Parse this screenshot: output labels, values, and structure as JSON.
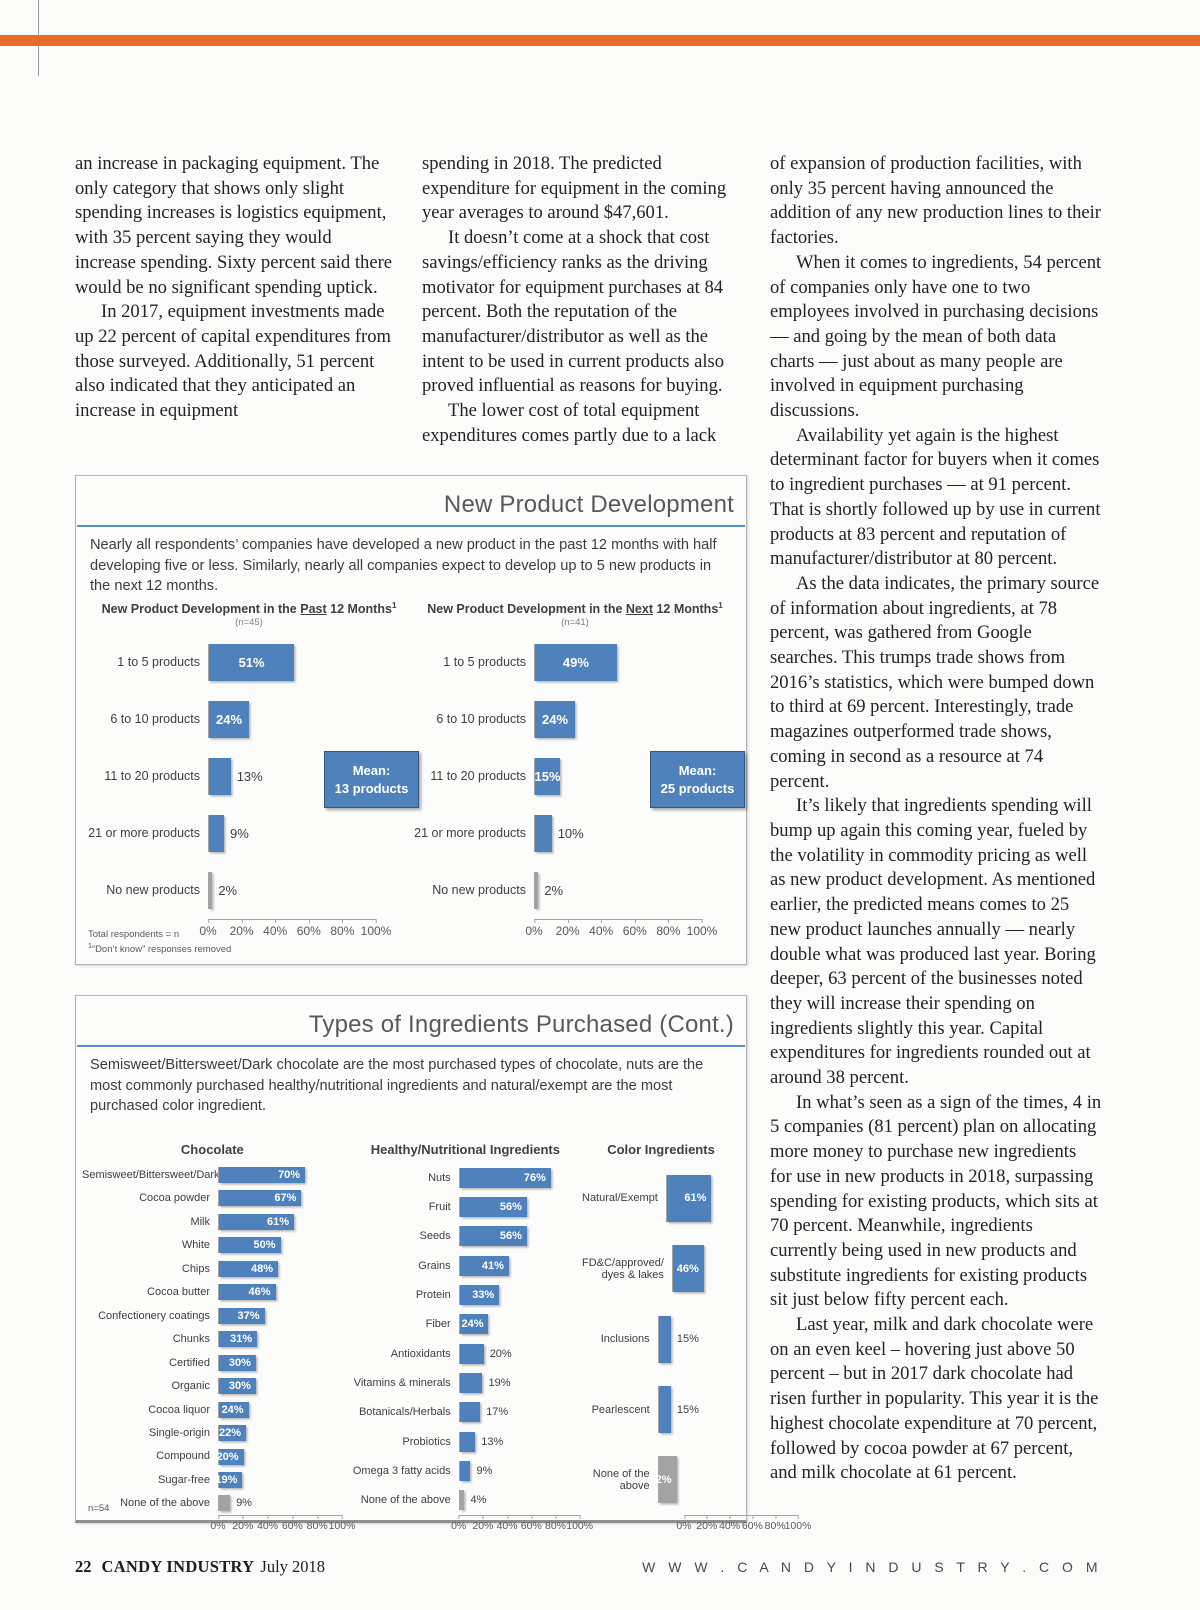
{
  "page": {
    "top_bar_color": "#e76b28",
    "accent_blue": "#4f81bd",
    "bar_gray": "#a3a3a3",
    "rule_blue": "#5b8fc9"
  },
  "article": {
    "col1": [
      "an increase in packaging equipment. The only category that shows only slight spending increases is logistics equipment, with 35 percent saying they would increase spending. Sixty percent said there would be no significant spending uptick.",
      "In 2017, equipment investments made up 22 percent of capital expenditures from those surveyed. Additionally, 51 percent also indicated that they anticipated an increase in equipment"
    ],
    "col2": [
      "spending in 2018. The predicted expenditure for equipment in the coming year averages to around $47,601.",
      "It doesn’t come at a shock that cost savings/efficiency ranks as the driving motivator for equipment purchases at 84 percent. Both the reputation of the manufacturer/distributor as well as the intent to be used in current products also proved influential as reasons for buying.",
      "The lower cost of total equipment expenditures comes partly due to a lack"
    ],
    "col3": [
      "of expansion of production facilities, with only 35 percent having announced the addition of any new production lines to their factories.",
      "When it comes to ingredients, 54 percent of companies only have one to two employees involved in purchasing decisions — and going by the mean of both data charts — just about as many people are involved in equipment purchasing discussions.",
      "Availability yet again is the highest determinant factor for buyers when it comes to ingredient purchases — at 91 percent. That is shortly followed up by use in current products at 83 percent and reputation of manufacturer/distributor at 80 percent.",
      "As the data indicates, the primary source of information about ingredients, at 78 percent, was gathered from Google searches. This trumps trade shows from 2016’s statistics, which were bumped down to third at 69 percent. Interestingly, trade magazines outperformed trade shows, coming in second as a resource at 74 percent.",
      "It’s likely that ingredients spending will bump up again this coming year, fueled by the volatility in commodity pricing as well as new product development. As mentioned earlier, the predicted means comes to 25 new product launches annually — nearly double what was produced last year. Boring deeper, 63 percent of the businesses noted they will increase their spending on ingredients slightly this year. Capital expenditures for ingredients rounded out at around 38 percent.",
      "In what’s seen as a sign of the times, 4 in 5 companies (81 percent) plan on allocating more money to purchase new ingredients for use in new products in 2018, surpassing spending for existing products, which sits at 70 percent. Meanwhile, ingredients currently being used in new products and substitute ingredients for existing products sit just below fifty percent each.",
      "Last year, milk and dark chocolate were on an even keel – hovering just above 50 percent – but in 2017 dark chocolate had risen further in popularity. This year it is the highest chocolate expenditure at 70 percent, followed by cocoa powder at 67 percent, and milk chocolate at 61 percent."
    ]
  },
  "npd_box": {
    "title": "New Product Development",
    "subtitle": "Nearly all respondents’ companies have developed a new product in the past 12 months with half developing five or less. Similarly, nearly all companies expect to develop up to 5 new products in the next 12 months.",
    "footnote_line1": "Total respondents = n",
    "footnote_sup": "1",
    "footnote_line2": "“Don’t know” responses removed"
  },
  "ingredients_box": {
    "title": "Types of Ingredients Purchased (Cont.)",
    "subtitle": "Semisweet/Bittersweet/Dark chocolate are the most purchased types of chocolate, nuts are the most commonly purchased healthy/nutritional ingredients and natural/exempt are the most purchased color ingredient.",
    "footnote": "n=54"
  },
  "chart_data": [
    {
      "id": "npd_past_12_months",
      "type": "bar",
      "orientation": "horizontal",
      "title_prefix": "New Product Development in the ",
      "title_underline": "Past",
      "title_suffix": " 12 Months",
      "title_sup": "1",
      "n_label": "(n=45)",
      "categories": [
        "1 to 5 products",
        "6 to 10 products",
        "11 to 20 products",
        "21 or more products",
        "No new products"
      ],
      "values": [
        51,
        24,
        13,
        9,
        2
      ],
      "value_labels": [
        "51%",
        "24%",
        "13%",
        "9%",
        "2%"
      ],
      "label_inside": [
        true,
        true,
        false,
        false,
        false
      ],
      "bar_colors": [
        "#4f81bd",
        "#4f81bd",
        "#4f81bd",
        "#4f81bd",
        "#a3a3a3"
      ],
      "mean_line1": "Mean:",
      "mean_line2": "13 products",
      "xlim": [
        0,
        100
      ],
      "x_ticks": [
        "0%",
        "20%",
        "40%",
        "60%",
        "80%",
        "100%"
      ],
      "grid": false,
      "legend": "none"
    },
    {
      "id": "npd_next_12_months",
      "type": "bar",
      "orientation": "horizontal",
      "title_prefix": "New Product Development in the ",
      "title_underline": "Next",
      "title_suffix": " 12 Months",
      "title_sup": "1",
      "n_label": "(n=41)",
      "categories": [
        "1 to 5 products",
        "6 to 10 products",
        "11 to 20 products",
        "21 or more products",
        "No new products"
      ],
      "values": [
        49,
        24,
        15,
        10,
        2
      ],
      "value_labels": [
        "49%",
        "24%",
        "15%",
        "10%",
        "2%"
      ],
      "label_inside": [
        true,
        true,
        true,
        false,
        false
      ],
      "bar_colors": [
        "#4f81bd",
        "#4f81bd",
        "#4f81bd",
        "#4f81bd",
        "#a3a3a3"
      ],
      "mean_line1": "Mean:",
      "mean_line2": "25 products",
      "xlim": [
        0,
        100
      ],
      "x_ticks": [
        "0%",
        "20%",
        "40%",
        "60%",
        "80%",
        "100%"
      ],
      "grid": false,
      "legend": "none"
    },
    {
      "id": "chocolate",
      "type": "bar",
      "orientation": "horizontal",
      "title": "Chocolate",
      "categories": [
        "Semisweet/Bittersweet/Dark",
        "Cocoa powder",
        "Milk",
        "White",
        "Chips",
        "Cocoa butter",
        "Confectionery coatings",
        "Chunks",
        "Certified",
        "Organic",
        "Cocoa liquor",
        "Single-origin",
        "Compound",
        "Sugar-free",
        "None of the above"
      ],
      "values": [
        70,
        67,
        61,
        50,
        48,
        46,
        37,
        31,
        30,
        30,
        24,
        22,
        20,
        19,
        9
      ],
      "value_labels": [
        "70%",
        "67%",
        "61%",
        "50%",
        "48%",
        "46%",
        "37%",
        "31%",
        "30%",
        "30%",
        "24%",
        "22%",
        "20%",
        "19%",
        "9%"
      ],
      "label_inside": [
        true,
        true,
        true,
        true,
        true,
        true,
        true,
        true,
        true,
        true,
        true,
        true,
        true,
        true,
        false
      ],
      "bar_colors": [
        "#4f81bd",
        "#4f81bd",
        "#4f81bd",
        "#4f81bd",
        "#4f81bd",
        "#4f81bd",
        "#4f81bd",
        "#4f81bd",
        "#4f81bd",
        "#4f81bd",
        "#4f81bd",
        "#4f81bd",
        "#4f81bd",
        "#4f81bd",
        "#a3a3a3"
      ],
      "xlim": [
        0,
        100
      ],
      "x_ticks": [
        "0%",
        "20%",
        "40%",
        "60%",
        "80%",
        "100%"
      ],
      "grid": false,
      "legend": "none"
    },
    {
      "id": "healthy_nutritional_ingredients",
      "type": "bar",
      "orientation": "horizontal",
      "title": "Healthy/Nutritional Ingredients",
      "categories": [
        "Nuts",
        "Fruit",
        "Seeds",
        "Grains",
        "Protein",
        "Fiber",
        "Antioxidants",
        "Vitamins & minerals",
        "Botanicals/Herbals",
        "Probiotics",
        "Omega 3 fatty acids",
        "None of the above"
      ],
      "values": [
        76,
        56,
        56,
        41,
        33,
        24,
        20,
        19,
        17,
        13,
        9,
        4
      ],
      "value_labels": [
        "76%",
        "56%",
        "56%",
        "41%",
        "33%",
        "24%",
        "20%",
        "19%",
        "17%",
        "13%",
        "9%",
        "4%"
      ],
      "label_inside": [
        true,
        true,
        true,
        true,
        true,
        true,
        false,
        false,
        false,
        false,
        false,
        false
      ],
      "bar_colors": [
        "#4f81bd",
        "#4f81bd",
        "#4f81bd",
        "#4f81bd",
        "#4f81bd",
        "#4f81bd",
        "#4f81bd",
        "#4f81bd",
        "#4f81bd",
        "#4f81bd",
        "#4f81bd",
        "#a3a3a3"
      ],
      "xlim": [
        0,
        100
      ],
      "x_ticks": [
        "0%",
        "20%",
        "40%",
        "60%",
        "80%",
        "100%"
      ],
      "grid": false,
      "legend": "none"
    },
    {
      "id": "color_ingredients",
      "type": "bar",
      "orientation": "horizontal",
      "title": "Color Ingredients",
      "categories": [
        "Natural/Exempt",
        "FD&C/approved/\ndyes & lakes",
        "Inclusions",
        "Pearlescent",
        "None of the above"
      ],
      "values": [
        61,
        46,
        15,
        15,
        22
      ],
      "value_labels": [
        "61%",
        "46%",
        "15%",
        "15%",
        "22%"
      ],
      "label_inside": [
        true,
        true,
        false,
        false,
        true
      ],
      "bar_colors": [
        "#4f81bd",
        "#4f81bd",
        "#4f81bd",
        "#4f81bd",
        "#a3a3a3"
      ],
      "xlim": [
        0,
        100
      ],
      "x_ticks": [
        "0%",
        "20%",
        "40%",
        "60%",
        "80%",
        "100%"
      ],
      "grid": false,
      "legend": "none"
    }
  ],
  "footer": {
    "page_number": "22",
    "magazine": "CANDY INDUSTRY",
    "issue": "July 2018",
    "website": "W W W . C A N D Y I N D U S T R Y . C O M"
  }
}
